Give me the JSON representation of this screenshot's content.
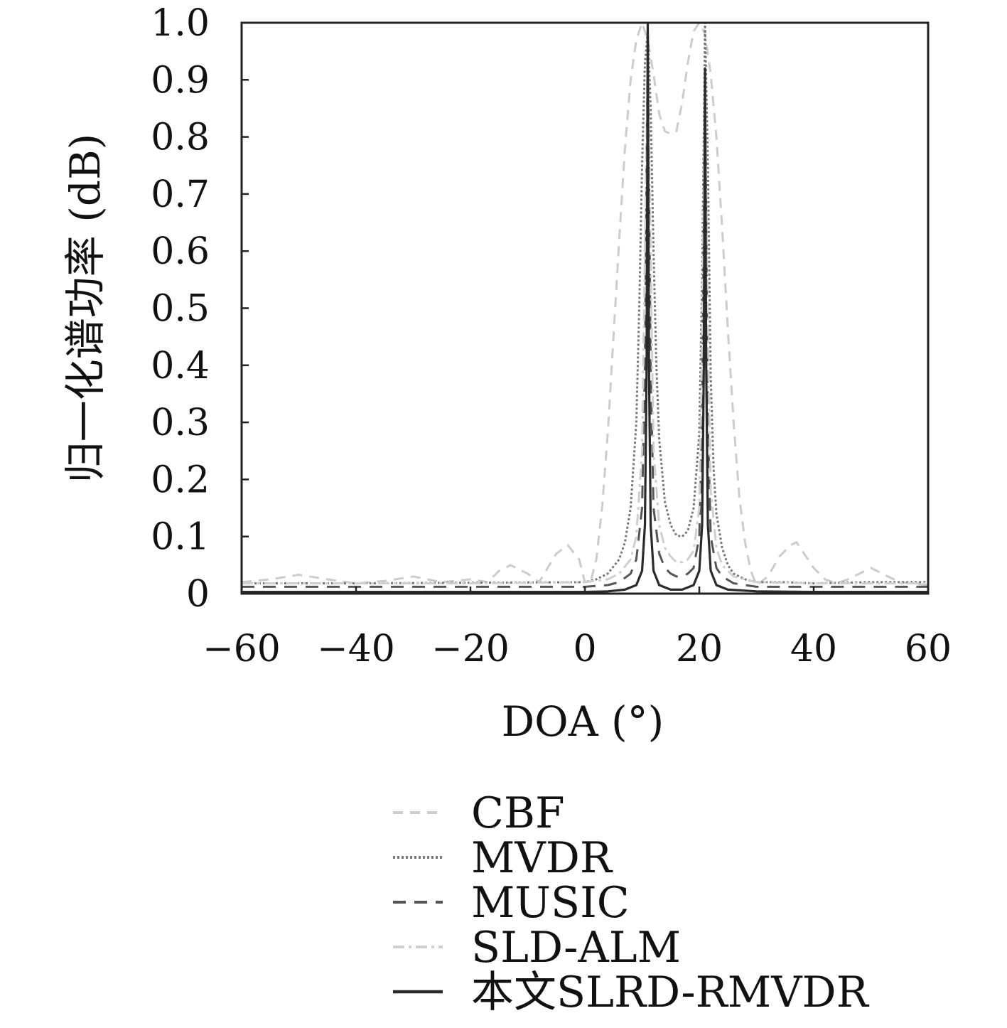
{
  "chart_data": {
    "type": "line",
    "title": "",
    "xlabel": "DOA (°)",
    "ylabel": "归一化谱功率 (dB)",
    "xlim": [
      -60,
      60
    ],
    "ylim": [
      0,
      1.0
    ],
    "xticks": [
      -60,
      -40,
      -20,
      0,
      20,
      40,
      60
    ],
    "xtick_labels": [
      "−60",
      "−40",
      "−20",
      "0",
      "20",
      "40",
      "60"
    ],
    "yticks": [
      0,
      0.1,
      0.2,
      0.3,
      0.4,
      0.5,
      0.6,
      0.7,
      0.8,
      0.9,
      1.0
    ],
    "ytick_labels": [
      "0",
      "0.1",
      "0.2",
      "0.3",
      "0.4",
      "0.5",
      "0.6",
      "0.7",
      "0.8",
      "0.9",
      "1.0"
    ],
    "grid": false,
    "legend_position": "below",
    "series": [
      {
        "name": "CBF",
        "color": "#cccccc",
        "dash": "14,10",
        "x": [
          -60,
          -55,
          -50,
          -45,
          -40,
          -35,
          -30,
          -25,
          -20,
          -17,
          -15,
          -13,
          -10,
          -8,
          -5,
          -3,
          -1,
          0,
          1,
          2,
          3,
          4,
          5,
          6,
          7,
          8,
          9,
          10,
          11,
          12,
          13,
          14,
          15,
          16,
          17,
          18,
          19,
          20,
          21,
          22,
          23,
          24,
          25,
          26,
          27,
          28,
          29,
          30,
          32,
          34,
          36,
          37,
          38,
          40,
          42,
          44,
          46,
          48,
          50,
          52,
          55,
          60
        ],
        "y": [
          0.02,
          0.025,
          0.033,
          0.025,
          0.018,
          0.022,
          0.03,
          0.02,
          0.025,
          0.02,
          0.04,
          0.05,
          0.035,
          0.02,
          0.07,
          0.085,
          0.06,
          0.02,
          0.02,
          0.06,
          0.15,
          0.28,
          0.45,
          0.62,
          0.78,
          0.9,
          0.97,
          1.0,
          0.97,
          0.91,
          0.84,
          0.81,
          0.805,
          0.81,
          0.86,
          0.93,
          0.985,
          1.0,
          0.98,
          0.91,
          0.8,
          0.64,
          0.46,
          0.3,
          0.17,
          0.09,
          0.04,
          0.015,
          0.03,
          0.065,
          0.085,
          0.09,
          0.075,
          0.045,
          0.025,
          0.018,
          0.025,
          0.035,
          0.045,
          0.035,
          0.02,
          0.015
        ]
      },
      {
        "name": "MVDR",
        "color": "#777777",
        "dash": "3,3",
        "x": [
          -60,
          -40,
          -20,
          0,
          2,
          4,
          6,
          7,
          8,
          9,
          9.5,
          10,
          10.5,
          11,
          11.5,
          12,
          12.5,
          13,
          14,
          15,
          16,
          17,
          18,
          19,
          20,
          20.5,
          21,
          21.5,
          22,
          22.5,
          23,
          24,
          25,
          26,
          28,
          30,
          35,
          40,
          50,
          60
        ],
        "y": [
          0.018,
          0.018,
          0.019,
          0.02,
          0.025,
          0.035,
          0.06,
          0.09,
          0.15,
          0.3,
          0.5,
          0.75,
          0.93,
          0.985,
          0.85,
          0.6,
          0.4,
          0.27,
          0.16,
          0.12,
          0.102,
          0.1,
          0.11,
          0.15,
          0.28,
          0.55,
          1.0,
          0.75,
          0.38,
          0.22,
          0.14,
          0.08,
          0.05,
          0.035,
          0.025,
          0.02,
          0.02,
          0.018,
          0.02,
          0.02
        ]
      },
      {
        "name": "MUSIC",
        "color": "#555555",
        "dash": "18,12",
        "x": [
          -60,
          -40,
          -20,
          0,
          4,
          6,
          8,
          9,
          10,
          10.5,
          11,
          11.5,
          12,
          13,
          14,
          15,
          16,
          17,
          18,
          19,
          20,
          20.5,
          21,
          21.5,
          22,
          23,
          24,
          26,
          30,
          40,
          60
        ],
        "y": [
          0.012,
          0.012,
          0.012,
          0.012,
          0.015,
          0.02,
          0.035,
          0.06,
          0.15,
          0.4,
          0.98,
          0.4,
          0.15,
          0.07,
          0.045,
          0.035,
          0.03,
          0.03,
          0.035,
          0.045,
          0.1,
          0.3,
          0.9,
          0.3,
          0.1,
          0.045,
          0.03,
          0.018,
          0.012,
          0.012,
          0.012
        ]
      },
      {
        "name": "SLD-ALM",
        "color": "#cfcfcf",
        "dash": "16,6,4,6",
        "x": [
          -60,
          -40,
          -20,
          0,
          4,
          6,
          8,
          9,
          10,
          10.5,
          11,
          11.5,
          12,
          13,
          14,
          15,
          16,
          17,
          18,
          19,
          20,
          20.5,
          21,
          21.5,
          22,
          23,
          24,
          26,
          30,
          40,
          60
        ],
        "y": [
          0.018,
          0.018,
          0.018,
          0.02,
          0.025,
          0.035,
          0.06,
          0.1,
          0.25,
          0.6,
          0.95,
          0.6,
          0.25,
          0.12,
          0.08,
          0.065,
          0.055,
          0.055,
          0.06,
          0.075,
          0.15,
          0.45,
          0.92,
          0.45,
          0.18,
          0.08,
          0.05,
          0.03,
          0.02,
          0.018,
          0.018
        ]
      },
      {
        "name": "本文SLRD-RMVDR",
        "color": "#2a2a2a",
        "dash": "",
        "x": [
          -60,
          -40,
          -20,
          0,
          4,
          7,
          9,
          10,
          10.5,
          10.8,
          11,
          11.2,
          11.5,
          12,
          13,
          15,
          17,
          19,
          20,
          20.5,
          20.8,
          21,
          21.2,
          21.5,
          22,
          23,
          25,
          30,
          40,
          60
        ],
        "y": [
          0.003,
          0.003,
          0.003,
          0.003,
          0.004,
          0.007,
          0.015,
          0.04,
          0.12,
          0.4,
          1.0,
          0.4,
          0.12,
          0.04,
          0.015,
          0.007,
          0.007,
          0.015,
          0.04,
          0.12,
          0.4,
          0.92,
          0.4,
          0.12,
          0.04,
          0.015,
          0.007,
          0.004,
          0.003,
          0.003
        ]
      }
    ]
  }
}
